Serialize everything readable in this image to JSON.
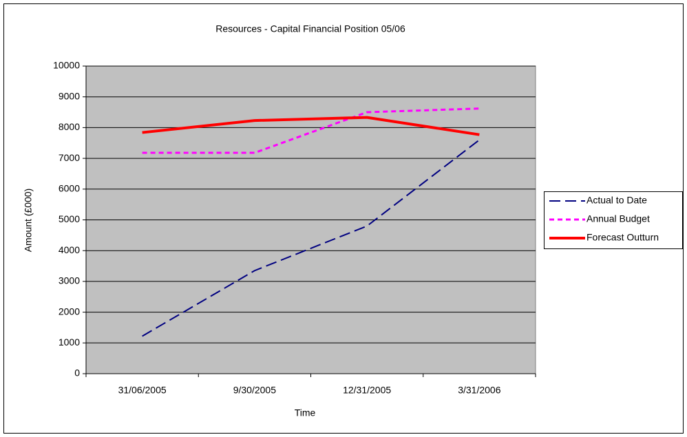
{
  "chart_data": {
    "type": "line",
    "title": "Resources - Capital Financial Position 05/06",
    "x_label": "Time",
    "y_label": "Amount (£000)",
    "categories": [
      "31/06/2005",
      "9/30/2005",
      "12/31/2005",
      "3/31/2006"
    ],
    "series": [
      {
        "name": "Actual to Date",
        "color": "#000080",
        "dash": "dashed",
        "values": [
          1220,
          3350,
          4800,
          7600
        ]
      },
      {
        "name": "Annual Budget",
        "color": "#ff00ff",
        "dash": "dotted",
        "values": [
          7180,
          7180,
          8500,
          8620
        ]
      },
      {
        "name": "Forecast Outturn",
        "color": "#ff0000",
        "dash": "solid",
        "values": [
          7840,
          8230,
          8330,
          7770
        ]
      }
    ],
    "ylim": [
      0,
      10000
    ],
    "yticks": [
      0,
      1000,
      2000,
      3000,
      4000,
      5000,
      6000,
      7000,
      8000,
      9000,
      10000
    ],
    "grid": true,
    "legend": "right",
    "plot_background": "#c0c0c0"
  }
}
